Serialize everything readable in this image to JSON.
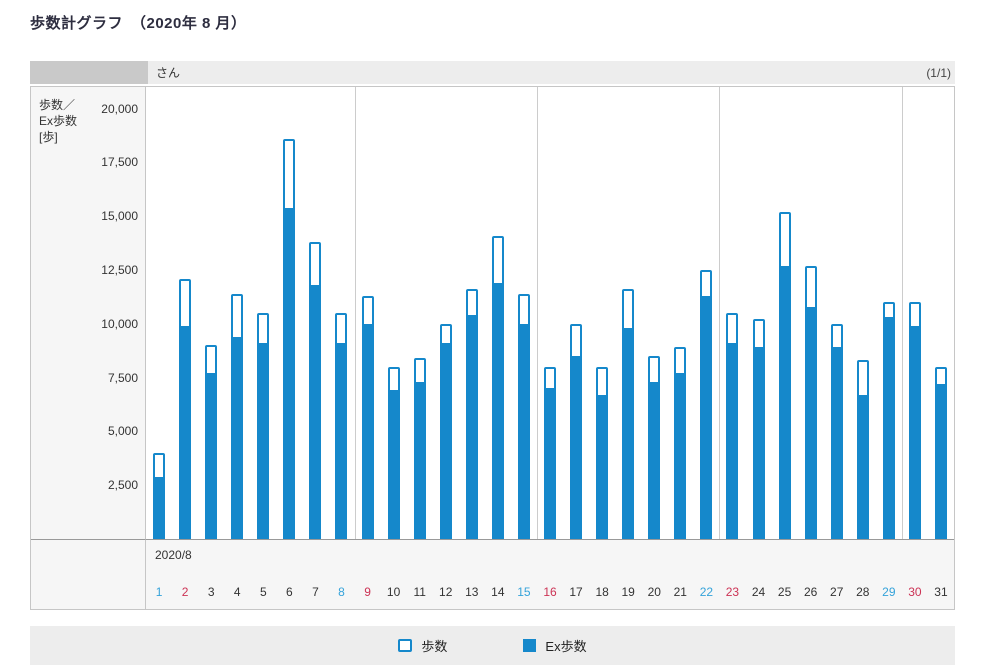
{
  "page": {
    "title": "歩数計グラフ　（2020年 8 月）"
  },
  "header": {
    "name_suffix": "さん",
    "page_indicator": "(1/1)"
  },
  "chart": {
    "y_axis_label_lines": [
      "歩数／",
      "Ex歩数",
      "[歩]"
    ],
    "month_label": "2020/8"
  },
  "legend": {
    "steps_label": "歩数",
    "ex_steps_label": "Ex歩数"
  },
  "chart_data": {
    "type": "bar",
    "title": "歩数計グラフ （2020年 8 月）",
    "xlabel": "2020/8",
    "ylabel": "歩数／Ex歩数 [歩]",
    "ylim": [
      0,
      21000
    ],
    "y_ticks": [
      20000,
      17500,
      15000,
      12500,
      10000,
      7500,
      5000,
      2500
    ],
    "x": [
      1,
      2,
      3,
      4,
      5,
      6,
      7,
      8,
      9,
      10,
      11,
      12,
      13,
      14,
      15,
      16,
      17,
      18,
      19,
      20,
      21,
      22,
      23,
      24,
      25,
      26,
      27,
      28,
      29,
      30,
      31
    ],
    "series": [
      {
        "name": "歩数",
        "style": "outline",
        "values": [
          4000,
          12100,
          9000,
          11400,
          10500,
          18600,
          13800,
          10500,
          11300,
          8000,
          8400,
          10000,
          11600,
          14100,
          11400,
          8000,
          10000,
          8000,
          11600,
          8500,
          8900,
          12500,
          10500,
          10200,
          15200,
          12700,
          10000,
          8300,
          11000,
          11000,
          8000
        ]
      },
      {
        "name": "Ex歩数",
        "style": "solid",
        "values": [
          2900,
          9900,
          7700,
          9400,
          9100,
          15400,
          11800,
          9100,
          10000,
          6900,
          7300,
          9100,
          10400,
          11900,
          10000,
          7000,
          8500,
          6700,
          9800,
          7300,
          7700,
          11300,
          9100,
          8900,
          12700,
          10800,
          8900,
          6700,
          10300,
          9900,
          7200
        ]
      }
    ],
    "week_separators_after_day": [
      8,
      15,
      22,
      29
    ],
    "saturdays": [
      1,
      8,
      15,
      22,
      29
    ],
    "sundays": [
      2,
      9,
      16,
      23,
      30
    ],
    "grid": "vertical-week-separators-only",
    "legend_position": "bottom",
    "colors": {
      "bar": "#1588cb",
      "saturday": "#35a3da",
      "sunday": "#cc3355"
    }
  }
}
